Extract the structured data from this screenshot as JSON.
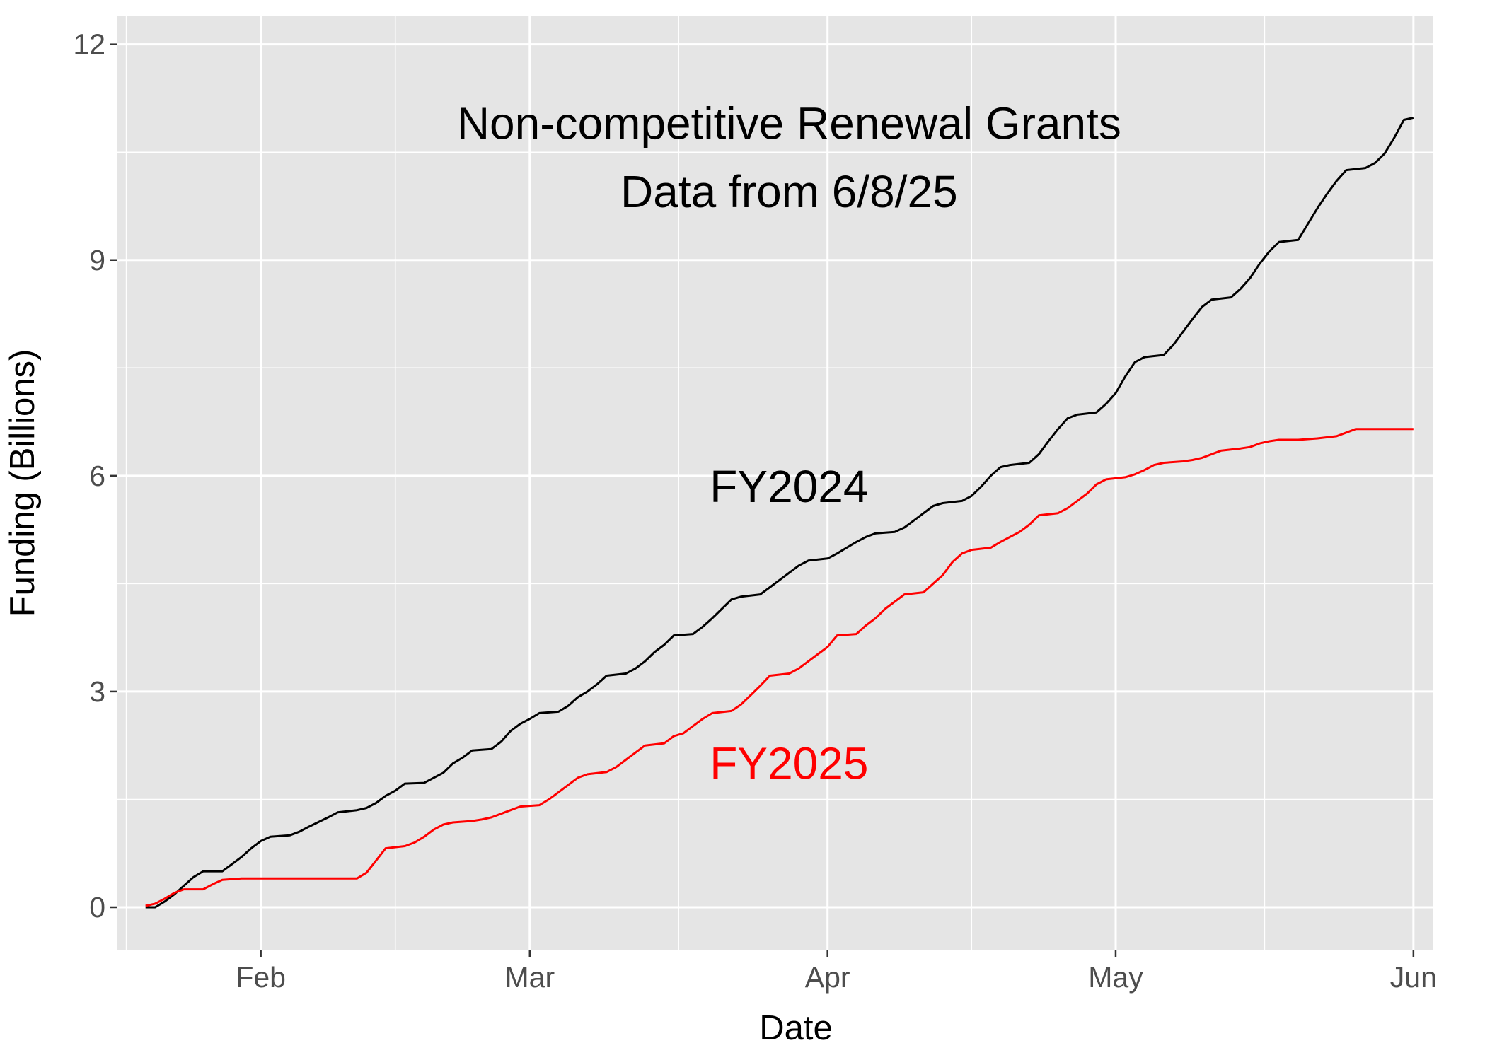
{
  "chart_data": {
    "type": "line",
    "title": "",
    "xlabel": "Date",
    "ylabel": "Funding (Billions)",
    "x_axis_type": "date",
    "x_range": [
      "2025-01-17",
      "2025-06-03"
    ],
    "ylim": [
      -0.6,
      12.4
    ],
    "x_ticks": [
      {
        "date": "2025-02-01",
        "label": "Feb"
      },
      {
        "date": "2025-03-01",
        "label": "Mar"
      },
      {
        "date": "2025-04-01",
        "label": "Apr"
      },
      {
        "date": "2025-05-01",
        "label": "May"
      },
      {
        "date": "2025-06-01",
        "label": "Jun"
      }
    ],
    "y_ticks": [
      0,
      3,
      6,
      9,
      12
    ],
    "grid": true,
    "legend": "none",
    "annotations": [
      {
        "text": "Non-competitive Renewal Grants",
        "date": "2025-03-28",
        "y": 10.9,
        "color": "#000000"
      },
      {
        "text": "Data from 6/8/25",
        "date": "2025-03-28",
        "y": 9.95,
        "color": "#000000"
      },
      {
        "text": "FY2024",
        "date": "2025-03-28",
        "y": 5.85,
        "color": "#000000"
      },
      {
        "text": "FY2025",
        "date": "2025-03-28",
        "y": 2.0,
        "color": "#ff0000"
      }
    ],
    "series": [
      {
        "name": "FY2024",
        "color": "#000000",
        "points": [
          [
            "2025-01-20",
            0.0
          ],
          [
            "2025-01-21",
            0.0
          ],
          [
            "2025-01-22",
            0.08
          ],
          [
            "2025-01-23",
            0.18
          ],
          [
            "2025-01-24",
            0.3
          ],
          [
            "2025-01-25",
            0.42
          ],
          [
            "2025-01-26",
            0.5
          ],
          [
            "2025-01-27",
            0.5
          ],
          [
            "2025-01-28",
            0.5
          ],
          [
            "2025-01-29",
            0.6
          ],
          [
            "2025-01-30",
            0.7
          ],
          [
            "2025-01-31",
            0.82
          ],
          [
            "2025-02-01",
            0.92
          ],
          [
            "2025-02-02",
            0.98
          ],
          [
            "2025-02-04",
            1.0
          ],
          [
            "2025-02-05",
            1.05
          ],
          [
            "2025-02-06",
            1.12
          ],
          [
            "2025-02-08",
            1.25
          ],
          [
            "2025-02-09",
            1.32
          ],
          [
            "2025-02-11",
            1.35
          ],
          [
            "2025-02-12",
            1.38
          ],
          [
            "2025-02-13",
            1.45
          ],
          [
            "2025-02-14",
            1.55
          ],
          [
            "2025-02-15",
            1.62
          ],
          [
            "2025-02-16",
            1.72
          ],
          [
            "2025-02-18",
            1.73
          ],
          [
            "2025-02-19",
            1.8
          ],
          [
            "2025-02-20",
            1.87
          ],
          [
            "2025-02-21",
            2.0
          ],
          [
            "2025-02-22",
            2.08
          ],
          [
            "2025-02-23",
            2.18
          ],
          [
            "2025-02-25",
            2.2
          ],
          [
            "2025-02-26",
            2.3
          ],
          [
            "2025-02-27",
            2.45
          ],
          [
            "2025-02-28",
            2.55
          ],
          [
            "2025-03-01",
            2.62
          ],
          [
            "2025-03-02",
            2.7
          ],
          [
            "2025-03-04",
            2.72
          ],
          [
            "2025-03-05",
            2.8
          ],
          [
            "2025-03-06",
            2.92
          ],
          [
            "2025-03-07",
            3.0
          ],
          [
            "2025-03-08",
            3.1
          ],
          [
            "2025-03-09",
            3.22
          ],
          [
            "2025-03-11",
            3.25
          ],
          [
            "2025-03-12",
            3.32
          ],
          [
            "2025-03-13",
            3.42
          ],
          [
            "2025-03-14",
            3.55
          ],
          [
            "2025-03-15",
            3.65
          ],
          [
            "2025-03-16",
            3.78
          ],
          [
            "2025-03-18",
            3.8
          ],
          [
            "2025-03-19",
            3.9
          ],
          [
            "2025-03-20",
            4.02
          ],
          [
            "2025-03-21",
            4.15
          ],
          [
            "2025-03-22",
            4.28
          ],
          [
            "2025-03-23",
            4.32
          ],
          [
            "2025-03-25",
            4.35
          ],
          [
            "2025-03-26",
            4.45
          ],
          [
            "2025-03-27",
            4.55
          ],
          [
            "2025-03-28",
            4.65
          ],
          [
            "2025-03-29",
            4.75
          ],
          [
            "2025-03-30",
            4.82
          ],
          [
            "2025-04-01",
            4.85
          ],
          [
            "2025-04-02",
            4.92
          ],
          [
            "2025-04-03",
            5.0
          ],
          [
            "2025-04-04",
            5.08
          ],
          [
            "2025-04-05",
            5.15
          ],
          [
            "2025-04-06",
            5.2
          ],
          [
            "2025-04-08",
            5.22
          ],
          [
            "2025-04-09",
            5.28
          ],
          [
            "2025-04-10",
            5.38
          ],
          [
            "2025-04-11",
            5.48
          ],
          [
            "2025-04-12",
            5.58
          ],
          [
            "2025-04-13",
            5.62
          ],
          [
            "2025-04-15",
            5.65
          ],
          [
            "2025-04-16",
            5.72
          ],
          [
            "2025-04-17",
            5.85
          ],
          [
            "2025-04-18",
            6.0
          ],
          [
            "2025-04-19",
            6.12
          ],
          [
            "2025-04-20",
            6.15
          ],
          [
            "2025-04-22",
            6.18
          ],
          [
            "2025-04-23",
            6.3
          ],
          [
            "2025-04-24",
            6.48
          ],
          [
            "2025-04-25",
            6.65
          ],
          [
            "2025-04-26",
            6.8
          ],
          [
            "2025-04-27",
            6.85
          ],
          [
            "2025-04-29",
            6.88
          ],
          [
            "2025-04-30",
            7.0
          ],
          [
            "2025-05-01",
            7.15
          ],
          [
            "2025-05-02",
            7.38
          ],
          [
            "2025-05-03",
            7.58
          ],
          [
            "2025-05-04",
            7.65
          ],
          [
            "2025-05-06",
            7.68
          ],
          [
            "2025-05-07",
            7.82
          ],
          [
            "2025-05-08",
            8.0
          ],
          [
            "2025-05-09",
            8.18
          ],
          [
            "2025-05-10",
            8.35
          ],
          [
            "2025-05-11",
            8.45
          ],
          [
            "2025-05-13",
            8.48
          ],
          [
            "2025-05-14",
            8.6
          ],
          [
            "2025-05-15",
            8.75
          ],
          [
            "2025-05-16",
            8.95
          ],
          [
            "2025-05-17",
            9.12
          ],
          [
            "2025-05-18",
            9.25
          ],
          [
            "2025-05-20",
            9.28
          ],
          [
            "2025-05-21",
            9.5
          ],
          [
            "2025-05-22",
            9.72
          ],
          [
            "2025-05-23",
            9.92
          ],
          [
            "2025-05-24",
            10.1
          ],
          [
            "2025-05-25",
            10.25
          ],
          [
            "2025-05-27",
            10.28
          ],
          [
            "2025-05-28",
            10.35
          ],
          [
            "2025-05-29",
            10.48
          ],
          [
            "2025-05-30",
            10.7
          ],
          [
            "2025-05-31",
            10.95
          ],
          [
            "2025-06-01",
            10.98
          ]
        ]
      },
      {
        "name": "FY2025",
        "color": "#ff0000",
        "points": [
          [
            "2025-01-20",
            0.02
          ],
          [
            "2025-01-21",
            0.05
          ],
          [
            "2025-01-22",
            0.12
          ],
          [
            "2025-01-23",
            0.2
          ],
          [
            "2025-01-24",
            0.25
          ],
          [
            "2025-01-26",
            0.25
          ],
          [
            "2025-01-27",
            0.32
          ],
          [
            "2025-01-28",
            0.38
          ],
          [
            "2025-01-30",
            0.4
          ],
          [
            "2025-02-01",
            0.4
          ],
          [
            "2025-02-05",
            0.4
          ],
          [
            "2025-02-09",
            0.4
          ],
          [
            "2025-02-11",
            0.4
          ],
          [
            "2025-02-12",
            0.48
          ],
          [
            "2025-02-13",
            0.65
          ],
          [
            "2025-02-14",
            0.82
          ],
          [
            "2025-02-16",
            0.85
          ],
          [
            "2025-02-17",
            0.9
          ],
          [
            "2025-02-18",
            0.98
          ],
          [
            "2025-02-19",
            1.08
          ],
          [
            "2025-02-20",
            1.15
          ],
          [
            "2025-02-21",
            1.18
          ],
          [
            "2025-02-23",
            1.2
          ],
          [
            "2025-02-24",
            1.22
          ],
          [
            "2025-02-25",
            1.25
          ],
          [
            "2025-02-26",
            1.3
          ],
          [
            "2025-02-27",
            1.35
          ],
          [
            "2025-02-28",
            1.4
          ],
          [
            "2025-03-02",
            1.42
          ],
          [
            "2025-03-03",
            1.5
          ],
          [
            "2025-03-04",
            1.6
          ],
          [
            "2025-03-05",
            1.7
          ],
          [
            "2025-03-06",
            1.8
          ],
          [
            "2025-03-07",
            1.85
          ],
          [
            "2025-03-09",
            1.88
          ],
          [
            "2025-03-10",
            1.95
          ],
          [
            "2025-03-11",
            2.05
          ],
          [
            "2025-03-12",
            2.15
          ],
          [
            "2025-03-13",
            2.25
          ],
          [
            "2025-03-15",
            2.28
          ],
          [
            "2025-03-16",
            2.38
          ],
          [
            "2025-03-17",
            2.42
          ],
          [
            "2025-03-18",
            2.52
          ],
          [
            "2025-03-19",
            2.62
          ],
          [
            "2025-03-20",
            2.7
          ],
          [
            "2025-03-22",
            2.73
          ],
          [
            "2025-03-23",
            2.82
          ],
          [
            "2025-03-24",
            2.95
          ],
          [
            "2025-03-25",
            3.08
          ],
          [
            "2025-03-26",
            3.22
          ],
          [
            "2025-03-28",
            3.25
          ],
          [
            "2025-03-29",
            3.32
          ],
          [
            "2025-03-30",
            3.42
          ],
          [
            "2025-03-31",
            3.52
          ],
          [
            "2025-04-01",
            3.62
          ],
          [
            "2025-04-02",
            3.78
          ],
          [
            "2025-04-04",
            3.8
          ],
          [
            "2025-04-05",
            3.92
          ],
          [
            "2025-04-06",
            4.02
          ],
          [
            "2025-04-07",
            4.15
          ],
          [
            "2025-04-08",
            4.25
          ],
          [
            "2025-04-09",
            4.35
          ],
          [
            "2025-04-11",
            4.38
          ],
          [
            "2025-04-12",
            4.5
          ],
          [
            "2025-04-13",
            4.62
          ],
          [
            "2025-04-14",
            4.8
          ],
          [
            "2025-04-15",
            4.92
          ],
          [
            "2025-04-16",
            4.97
          ],
          [
            "2025-04-18",
            5.0
          ],
          [
            "2025-04-19",
            5.08
          ],
          [
            "2025-04-20",
            5.15
          ],
          [
            "2025-04-21",
            5.22
          ],
          [
            "2025-04-22",
            5.32
          ],
          [
            "2025-04-23",
            5.45
          ],
          [
            "2025-04-25",
            5.48
          ],
          [
            "2025-04-26",
            5.55
          ],
          [
            "2025-04-27",
            5.65
          ],
          [
            "2025-04-28",
            5.75
          ],
          [
            "2025-04-29",
            5.88
          ],
          [
            "2025-04-30",
            5.95
          ],
          [
            "2025-05-02",
            5.98
          ],
          [
            "2025-05-03",
            6.02
          ],
          [
            "2025-05-04",
            6.08
          ],
          [
            "2025-05-05",
            6.15
          ],
          [
            "2025-05-06",
            6.18
          ],
          [
            "2025-05-08",
            6.2
          ],
          [
            "2025-05-09",
            6.22
          ],
          [
            "2025-05-10",
            6.25
          ],
          [
            "2025-05-11",
            6.3
          ],
          [
            "2025-05-12",
            6.35
          ],
          [
            "2025-05-14",
            6.38
          ],
          [
            "2025-05-15",
            6.4
          ],
          [
            "2025-05-16",
            6.45
          ],
          [
            "2025-05-17",
            6.48
          ],
          [
            "2025-05-18",
            6.5
          ],
          [
            "2025-05-20",
            6.5
          ],
          [
            "2025-05-22",
            6.52
          ],
          [
            "2025-05-24",
            6.55
          ],
          [
            "2025-05-25",
            6.6
          ],
          [
            "2025-05-26",
            6.65
          ],
          [
            "2025-05-28",
            6.65
          ],
          [
            "2025-06-01",
            6.65
          ]
        ]
      }
    ]
  }
}
